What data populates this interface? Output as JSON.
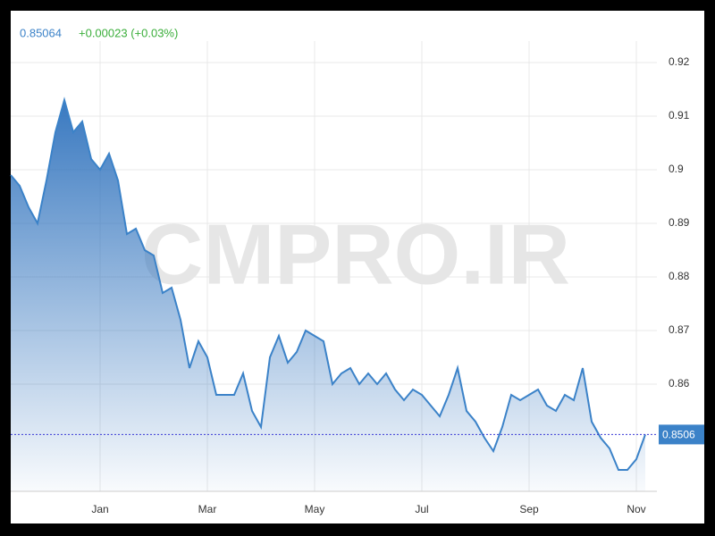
{
  "chart_data": {
    "type": "area",
    "price": "0.85064",
    "change": "+0.00023 (+0.03%)",
    "watermark": "CMPRO.IR",
    "categories": [
      null,
      null,
      null,
      null,
      null,
      null,
      null,
      null,
      null,
      null,
      "Jan",
      null,
      null,
      null,
      null,
      null,
      null,
      null,
      null,
      null,
      null,
      null,
      "Mar",
      null,
      null,
      null,
      null,
      null,
      null,
      null,
      null,
      null,
      null,
      null,
      "May",
      null,
      null,
      null,
      null,
      null,
      null,
      null,
      null,
      null,
      null,
      null,
      "Jul",
      null,
      null,
      null,
      null,
      null,
      null,
      null,
      null,
      null,
      null,
      null,
      "Sep",
      null,
      null,
      null,
      null,
      null,
      null,
      null,
      null,
      null,
      null,
      null,
      "Nov",
      null
    ],
    "series": [
      {
        "color": "#3b82c8",
        "values": [
          0.899,
          0.897,
          0.893,
          0.89,
          0.898,
          0.907,
          0.913,
          0.907,
          0.909,
          0.902,
          0.9,
          0.903,
          0.898,
          0.888,
          0.889,
          0.885,
          0.884,
          0.877,
          0.878,
          0.872,
          0.863,
          0.868,
          0.865,
          0.858,
          0.858,
          0.858,
          0.862,
          0.855,
          0.852,
          0.865,
          0.869,
          0.864,
          0.866,
          0.87,
          0.869,
          0.868,
          0.86,
          0.862,
          0.863,
          0.86,
          0.862,
          0.86,
          0.862,
          0.859,
          0.857,
          0.859,
          0.858,
          0.856,
          0.854,
          0.858,
          0.863,
          0.855,
          0.853,
          0.85,
          0.8475,
          0.852,
          0.858,
          0.857,
          0.858,
          0.859,
          0.856,
          0.855,
          0.858,
          0.857,
          0.863,
          0.853,
          0.85,
          0.848,
          0.844,
          0.844,
          0.846,
          0.8506
        ]
      }
    ],
    "price_line": 0.8506,
    "ylim": [
      0.84,
      0.924
    ],
    "yticks": [
      0.86,
      0.87,
      0.88,
      0.89,
      0.9,
      0.91,
      0.92
    ],
    "grid": true
  }
}
